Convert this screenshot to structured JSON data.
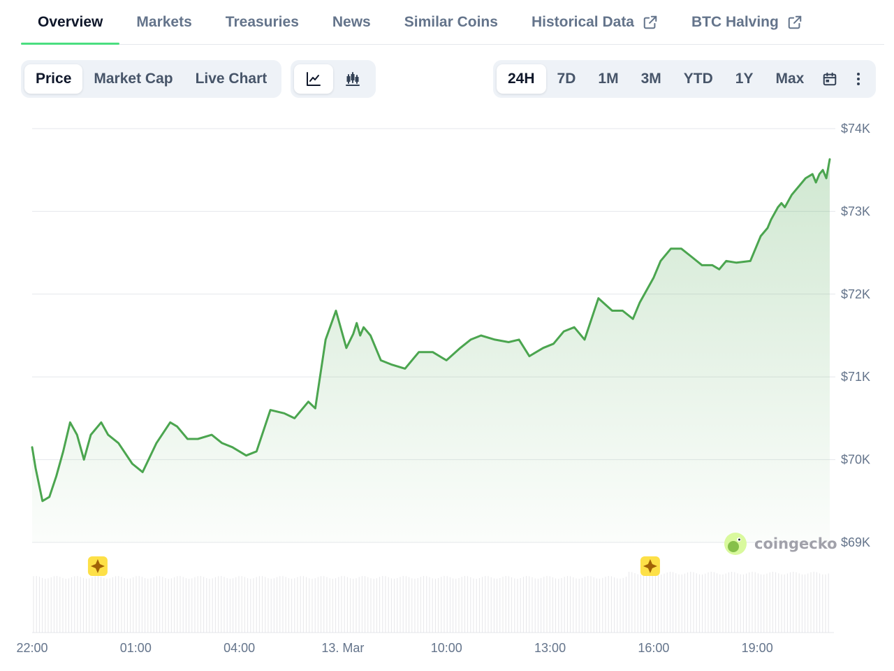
{
  "tabs": [
    {
      "label": "Overview",
      "active": true,
      "external": false
    },
    {
      "label": "Markets",
      "active": false,
      "external": false
    },
    {
      "label": "Treasuries",
      "active": false,
      "external": false
    },
    {
      "label": "News",
      "active": false,
      "external": false
    },
    {
      "label": "Similar Coins",
      "active": false,
      "external": false
    },
    {
      "label": "Historical Data",
      "active": false,
      "external": true
    },
    {
      "label": "BTC Halving",
      "active": false,
      "external": true
    }
  ],
  "chart_type": {
    "options": [
      "Price",
      "Market Cap",
      "Live Chart"
    ],
    "selected": "Price"
  },
  "view_toggle": {
    "options": [
      {
        "icon": "line-chart-icon",
        "active": true
      },
      {
        "icon": "candlestick-chart-icon",
        "active": false
      }
    ]
  },
  "ranges": {
    "options": [
      "24H",
      "7D",
      "1M",
      "3M",
      "YTD",
      "1Y",
      "Max"
    ],
    "selected": "24H",
    "calendar_icon": "calendar-icon",
    "more_icon": "more-vertical-icon"
  },
  "watermark": "coingecko",
  "colors": {
    "line": "#4ba54f",
    "accent_tab": "#4ade80",
    "event_marker": "#fde047"
  },
  "chart_data": {
    "type": "line",
    "y_axis": {
      "ticks": [
        "$74K",
        "$73K",
        "$72K",
        "$71K",
        "$70K",
        "$69K"
      ],
      "tick_values": [
        74000,
        73000,
        72000,
        71000,
        70000,
        69000
      ],
      "range": [
        69000,
        74000
      ],
      "position": "right"
    },
    "x_axis": {
      "ticks": [
        "22:00",
        "01:00",
        "04:00",
        "13. Mar",
        "10:00",
        "13:00",
        "16:00",
        "19:00"
      ],
      "tick_hours": [
        0,
        3,
        6,
        9,
        12,
        15,
        18,
        21
      ],
      "range_hours": [
        0,
        23.1
      ]
    },
    "grid": true,
    "legend": "none",
    "event_markers_hours": [
      1.9,
      17.9
    ],
    "series": [
      {
        "x_hours": [
          0,
          0.1,
          0.3,
          0.5,
          0.7,
          0.9,
          1.1,
          1.3,
          1.5,
          1.7,
          2,
          2.2,
          2.5,
          2.9,
          3.2,
          3.6,
          4,
          4.2,
          4.5,
          4.8,
          5.2,
          5.5,
          5.8,
          6.2,
          6.5,
          6.9,
          7.3,
          7.6,
          8,
          8.2,
          8.5,
          8.8,
          9.1,
          9.3,
          9.4,
          9.5,
          9.6,
          9.8,
          10.1,
          10.4,
          10.8,
          11.2,
          11.6,
          12,
          12.4,
          12.7,
          13,
          13.4,
          13.8,
          14.1,
          14.4,
          14.8,
          15.1,
          15.4,
          15.7,
          16,
          16.4,
          16.8,
          17.1,
          17.4,
          17.6,
          17.8,
          18,
          18.2,
          18.5,
          18.8,
          19.1,
          19.4,
          19.7,
          19.9,
          20.1,
          20.4,
          20.8,
          21.1,
          21.3,
          21.4,
          21.6,
          21.7,
          21.8,
          22,
          22.2,
          22.4,
          22.6,
          22.7,
          22.8,
          22.9,
          23,
          23.1
        ],
        "y": [
          70150,
          69900,
          69500,
          69550,
          69800,
          70100,
          70450,
          70300,
          70000,
          70300,
          70450,
          70300,
          70200,
          69950,
          69850,
          70200,
          70450,
          70400,
          70250,
          70250,
          70300,
          70200,
          70150,
          70050,
          70100,
          70600,
          70560,
          70500,
          70700,
          70620,
          71450,
          71800,
          71350,
          71520,
          71650,
          71500,
          71600,
          71500,
          71200,
          71150,
          71100,
          71300,
          71300,
          71200,
          71350,
          71450,
          71500,
          71450,
          71420,
          71450,
          71250,
          71350,
          71400,
          71550,
          71600,
          71450,
          71950,
          71800,
          71800,
          71700,
          71900,
          72050,
          72200,
          72400,
          72550,
          72550,
          72450,
          72350,
          72350,
          72300,
          72400,
          72380,
          72400,
          72700,
          72800,
          72900,
          73050,
          73100,
          73050,
          73200,
          73300,
          73400,
          73450,
          73350,
          73450,
          73500,
          73400,
          73630
        ]
      }
    ]
  }
}
